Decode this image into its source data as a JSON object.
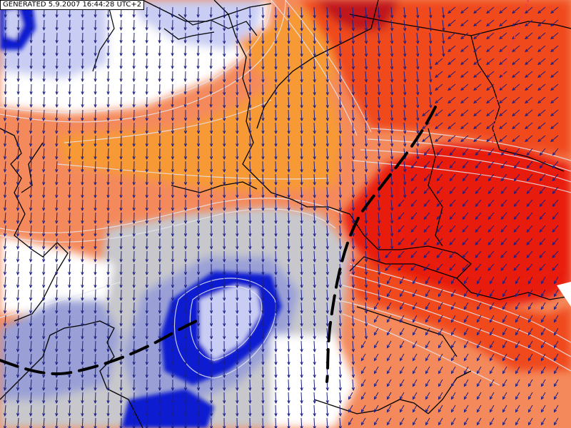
{
  "header": {
    "generated_stamp": "GENERATED 5.9.2007 16:44:28 UTC+2"
  },
  "map": {
    "type": "weather-analysis-map",
    "wind_field": "wind barbs / arrows over whole domain",
    "front": "dashed black line (frontal boundary)",
    "colors": {
      "deep_blue": "#0a1fd0",
      "light_blue": "#c9cdf3",
      "lilac": "#9aa0d6",
      "grey": "#c8c8cc",
      "white": "#ffffff",
      "salmon": "#f48a5c",
      "orange": "#f79a36",
      "red_orange": "#ef4a1c",
      "red": "#e81a10",
      "dark_red": "#c0141a",
      "arrow": "#1a1f86",
      "border": "#000000",
      "isoline": "#e6e6ee"
    }
  }
}
